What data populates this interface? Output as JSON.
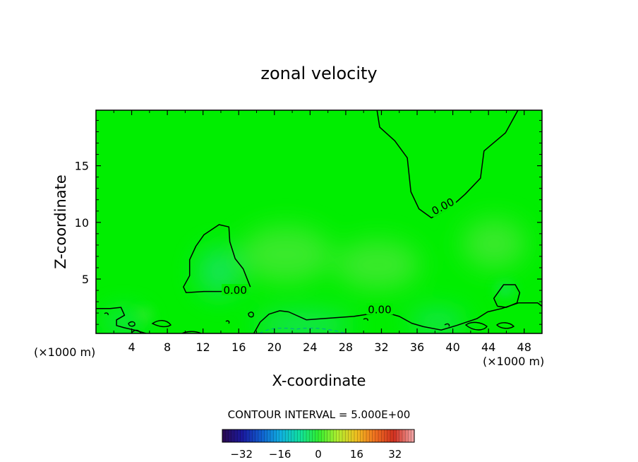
{
  "chart_data": {
    "type": "contour",
    "title": "zonal velocity",
    "xlabel": "X-coordinate",
    "ylabel": "Z-coordinate",
    "x_unit": "(×1000 m)",
    "y_unit": "(×1000 m)",
    "xlim": [
      0,
      50
    ],
    "ylim": [
      0.2,
      19.9
    ],
    "x_ticks": [
      4,
      8,
      12,
      16,
      20,
      24,
      28,
      32,
      36,
      40,
      44,
      48
    ],
    "y_ticks": [
      5,
      10,
      15
    ],
    "contour_interval_text": "CONTOUR INTERVAL = 5.000E+00",
    "contour_levels_labeled": [
      "0.00",
      "0.00",
      "0.00"
    ],
    "field_description_colors": {
      "background": "#00ee00",
      "light_patch": "#4fe839",
      "bluish_patch": "#1fe070",
      "contour_line": "#000000"
    },
    "colorbar": {
      "range": [
        -40,
        40
      ],
      "ticks": [
        -32,
        -16,
        0,
        16,
        32
      ],
      "tick_labels": [
        "−32",
        "−16",
        "0",
        "16",
        "32"
      ],
      "colors": [
        "#2a0a55",
        "#1a1aa0",
        "#1060d0",
        "#10b0e0",
        "#10e0a0",
        "#30ee30",
        "#b0ee30",
        "#f0c020",
        "#f07020",
        "#d03020",
        "#f0a0a0"
      ]
    },
    "zero_contours": [
      {
        "label": "0.00",
        "points": [
          [
            31.5,
            19.9
          ],
          [
            31.8,
            18.4
          ],
          [
            33.5,
            17.2
          ],
          [
            34.9,
            15.7
          ],
          [
            35.3,
            12.7
          ],
          [
            36.2,
            11.2
          ],
          [
            37.6,
            10.4
          ],
          [
            39.7,
            11.3
          ],
          [
            41.4,
            12.5
          ],
          [
            43.1,
            13.9
          ],
          [
            43.5,
            16.3
          ],
          [
            45.9,
            17.9
          ],
          [
            47.3,
            19.9
          ]
        ]
      },
      {
        "label": "0.00",
        "points": [
          [
            17.1,
            4.3
          ],
          [
            15.9,
            4.0
          ],
          [
            14.0,
            3.9
          ],
          [
            12.1,
            3.9
          ],
          [
            10.1,
            3.8
          ],
          [
            9.8,
            4.3
          ],
          [
            10.5,
            5.3
          ],
          [
            10.5,
            6.7
          ],
          [
            11.2,
            7.9
          ],
          [
            12.1,
            8.9
          ],
          [
            13.8,
            9.8
          ],
          [
            14.9,
            9.6
          ],
          [
            15.0,
            8.3
          ],
          [
            15.6,
            6.8
          ],
          [
            16.5,
            5.9
          ],
          [
            17.3,
            4.3
          ]
        ]
      },
      {
        "label": "0.00",
        "points": [
          [
            0.0,
            2.4
          ],
          [
            1.6,
            2.4
          ],
          [
            2.8,
            2.5
          ],
          [
            3.2,
            1.8
          ],
          [
            2.3,
            1.4
          ],
          [
            2.3,
            0.9
          ],
          [
            3.2,
            0.7
          ],
          [
            4.3,
            0.5
          ],
          [
            5.6,
            0.2
          ]
        ]
      },
      {
        "label": "",
        "points": [
          [
            17.7,
            0.2
          ],
          [
            18.4,
            1.2
          ],
          [
            19.4,
            1.9
          ],
          [
            20.6,
            2.2
          ],
          [
            21.6,
            2.1
          ],
          [
            23.6,
            1.4
          ],
          [
            25.3,
            1.5
          ],
          [
            27.1,
            1.6
          ],
          [
            28.9,
            1.7
          ],
          [
            30.5,
            1.9
          ],
          [
            32.7,
            2.0
          ],
          [
            34.0,
            1.7
          ],
          [
            35.4,
            1.1
          ],
          [
            36.7,
            0.8
          ],
          [
            38.7,
            0.5
          ],
          [
            40.4,
            0.9
          ],
          [
            42.7,
            1.5
          ],
          [
            43.9,
            2.1
          ],
          [
            45.5,
            2.4
          ],
          [
            47.4,
            2.9
          ],
          [
            49.5,
            2.9
          ],
          [
            50.0,
            2.6
          ]
        ]
      },
      {
        "label": "",
        "points": [
          [
            45.0,
            2.6
          ],
          [
            44.6,
            3.3
          ],
          [
            45.7,
            4.5
          ],
          [
            47.0,
            4.5
          ],
          [
            47.5,
            3.8
          ],
          [
            47.2,
            2.9
          ],
          [
            46.0,
            2.5
          ],
          [
            45.0,
            2.6
          ]
        ]
      }
    ]
  }
}
